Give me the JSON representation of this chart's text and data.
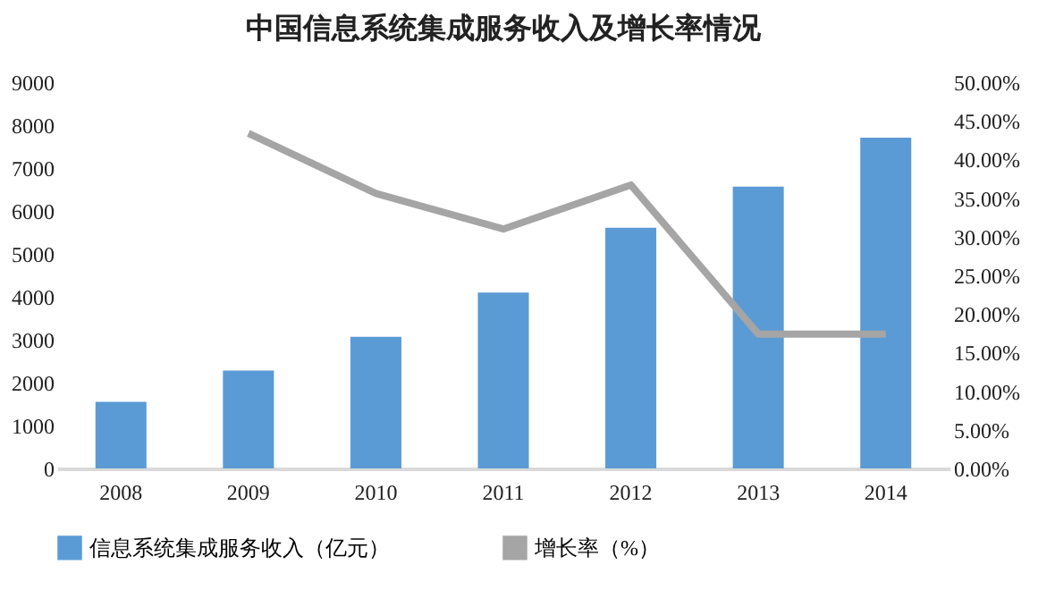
{
  "chart_data": {
    "type": "bar",
    "title": "中国信息系统集成服务收入及增长率情况",
    "categories": [
      "2008",
      "2009",
      "2010",
      "2011",
      "2012",
      "2013",
      "2014"
    ],
    "series": [
      {
        "name": "信息系统集成服务收入（亿元）",
        "color": "#5b9bd5",
        "values": [
          1550,
          2280,
          3070,
          4100,
          5610,
          6570,
          7710
        ]
      },
      {
        "name": "增长率（%）",
        "type": "line",
        "axis": "y2",
        "color": "#a5a5a5",
        "values": [
          null,
          43.4,
          35.6,
          31.0,
          36.7,
          17.4,
          17.4
        ]
      }
    ],
    "ylim": [
      0,
      9000
    ],
    "yticks": [
      0,
      1000,
      2000,
      3000,
      4000,
      5000,
      6000,
      7000,
      8000,
      9000
    ],
    "y2lim": [
      0,
      50
    ],
    "y2ticks": [
      {
        "value": 0,
        "label": "0.00%"
      },
      {
        "value": 5,
        "label": "5.00%"
      },
      {
        "value": 10,
        "label": "10.00%"
      },
      {
        "value": 15,
        "label": "15.00%"
      },
      {
        "value": 20,
        "label": "20.00%"
      },
      {
        "value": 25,
        "label": "25.00%"
      },
      {
        "value": 30,
        "label": "30.00%"
      },
      {
        "value": 35,
        "label": "35.00%"
      },
      {
        "value": 40,
        "label": "40.00%"
      },
      {
        "value": 45,
        "label": "45.00%"
      },
      {
        "value": 50,
        "label": "50.00%"
      }
    ],
    "grid": false,
    "legend": "bottom",
    "marker": "none"
  }
}
